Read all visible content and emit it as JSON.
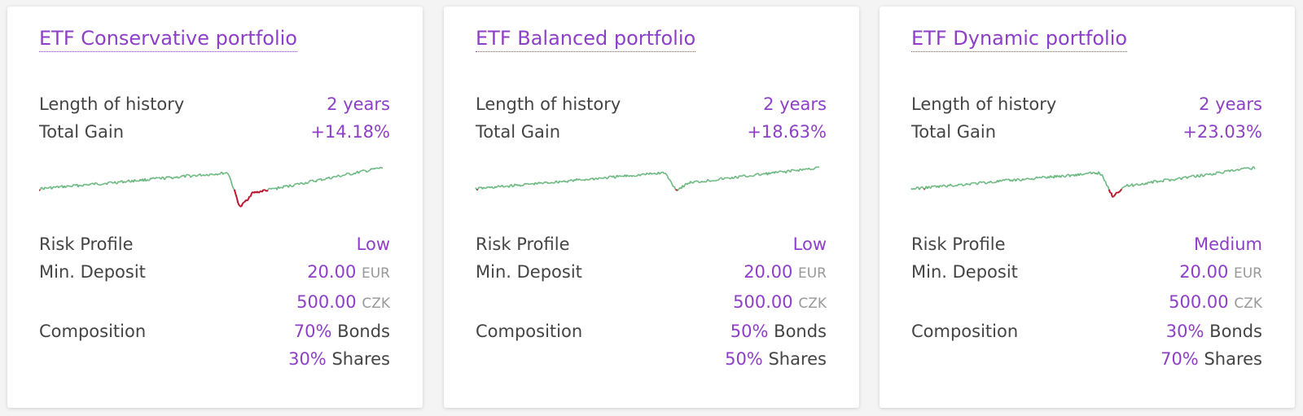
{
  "colors": {
    "accent": "#8e3fc7",
    "gain_line": "#6ab87f",
    "loss_line": "#b8162c"
  },
  "labels": {
    "history": "Length of history",
    "gain": "Total Gain",
    "risk": "Risk Profile",
    "deposit": "Min. Deposit",
    "composition": "Composition"
  },
  "portfolios": [
    {
      "title": "ETF Conservative portfolio",
      "history": "2 years",
      "gain": "+14.18%",
      "risk": "Low",
      "deposit_eur": "20.00",
      "eur": "EUR",
      "deposit_czk": "500.00",
      "czk": "CZK",
      "bonds_pct": "70%",
      "bonds": "Bonds",
      "shares_pct": "30%",
      "shares": "Shares"
    },
    {
      "title": "ETF Balanced portfolio",
      "history": "2 years",
      "gain": "+18.63%",
      "risk": "Low",
      "deposit_eur": "20.00",
      "eur": "EUR",
      "deposit_czk": "500.00",
      "czk": "CZK",
      "bonds_pct": "50%",
      "bonds": "Bonds",
      "shares_pct": "50%",
      "shares": "Shares"
    },
    {
      "title": "ETF Dynamic portfolio",
      "history": "2 years",
      "gain": "+23.03%",
      "risk": "Medium",
      "deposit_eur": "20.00",
      "eur": "EUR",
      "deposit_czk": "500.00",
      "czk": "CZK",
      "bonds_pct": "30%",
      "bonds": "Bonds",
      "shares_pct": "70%",
      "shares": "Shares"
    }
  ]
}
